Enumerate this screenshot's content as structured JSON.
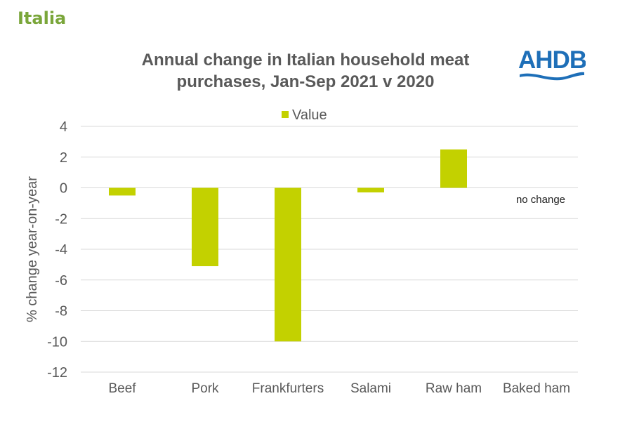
{
  "heading": "Italia",
  "logo_text": "AHDB",
  "chart_data": {
    "type": "bar",
    "title": "Annual change in Italian household meat purchases,  Jan-Sep 2021 v 2020",
    "title_lines": [
      "Annual change in Italian household meat",
      "purchases,  Jan-Sep 2021 v 2020"
    ],
    "categories": [
      "Beef",
      "Pork",
      "Frankfurters",
      "Salami",
      "Raw ham",
      "Baked ham"
    ],
    "series": [
      {
        "name": "Value",
        "values": [
          -0.5,
          -5.1,
          -10.0,
          -0.3,
          2.5,
          0
        ],
        "color": "#c3d100"
      }
    ],
    "ylabel": "% change year-on-year",
    "xlabel": "",
    "ylim": [
      -12,
      4
    ],
    "yticks": [
      4,
      2,
      0,
      -2,
      -4,
      -6,
      -8,
      -10,
      -12
    ],
    "grid": true,
    "legend_position": "top-center",
    "annotations": [
      {
        "category": "Baked ham",
        "text": "no change"
      }
    ]
  }
}
